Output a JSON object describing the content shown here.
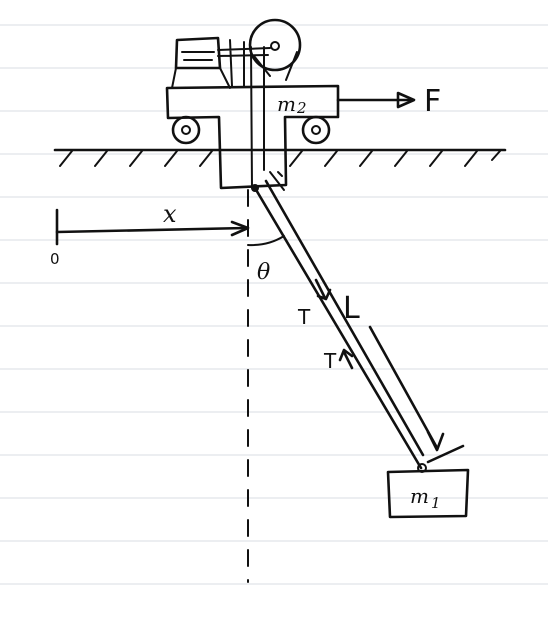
{
  "labels": {
    "force": "F",
    "cart_mass": "m",
    "cart_mass_sub": "2",
    "pendulum_mass": "m",
    "pendulum_mass_sub": "1",
    "origin": "0",
    "position": "x",
    "angle": "θ",
    "length": "L",
    "tension_top": "T",
    "tension_bottom": "T"
  }
}
